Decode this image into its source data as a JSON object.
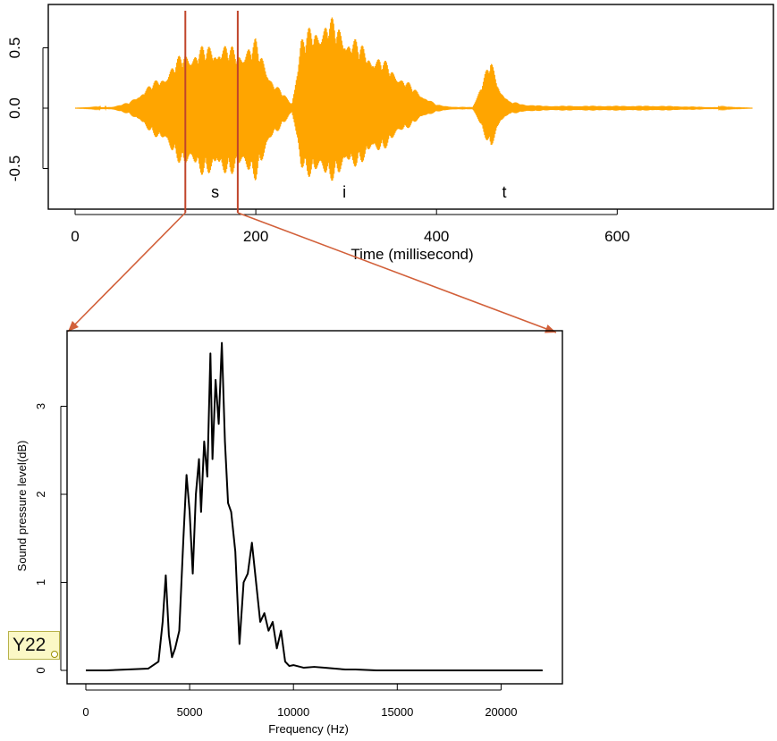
{
  "chart_data": [
    {
      "type": "line",
      "xlabel": "Time (millisecond)",
      "ylabel": "",
      "xlim": [
        0,
        760
      ],
      "ylim": [
        -0.8,
        0.8
      ],
      "xticks": [
        0,
        200,
        400,
        600
      ],
      "yticks": [
        -0.5,
        0.0,
        0.5
      ],
      "ytick_labels": [
        "-0.5",
        "0.0",
        "0.5"
      ],
      "series_color": "#ffa500",
      "envelope": {
        "x": [
          0,
          40,
          60,
          80,
          100,
          120,
          140,
          160,
          180,
          200,
          220,
          240,
          250,
          260,
          280,
          300,
          320,
          340,
          360,
          380,
          400,
          420,
          440,
          460,
          470,
          480,
          500,
          520,
          600,
          650,
          700,
          750
        ],
        "upper": [
          0.0,
          0.01,
          0.05,
          0.18,
          0.3,
          0.48,
          0.52,
          0.56,
          0.5,
          0.58,
          0.22,
          0.04,
          0.6,
          0.68,
          0.78,
          0.66,
          0.52,
          0.42,
          0.28,
          0.14,
          0.03,
          0.01,
          0.01,
          0.42,
          0.18,
          0.06,
          0.03,
          0.02,
          0.02,
          0.02,
          0.01,
          0.0
        ],
        "lower": [
          0.0,
          -0.01,
          -0.05,
          -0.18,
          -0.32,
          -0.5,
          -0.56,
          -0.58,
          -0.54,
          -0.6,
          -0.24,
          -0.04,
          -0.52,
          -0.58,
          -0.62,
          -0.55,
          -0.45,
          -0.36,
          -0.22,
          -0.1,
          -0.03,
          -0.01,
          -0.01,
          -0.35,
          -0.15,
          -0.05,
          -0.03,
          -0.02,
          -0.02,
          -0.02,
          -0.01,
          0.0
        ]
      },
      "segment_labels": [
        {
          "text": "s",
          "x": 155
        },
        {
          "text": "i",
          "x": 298
        },
        {
          "text": "t",
          "x": 475
        }
      ],
      "selection": {
        "x": [
          122,
          180
        ],
        "color": "#c0452b"
      }
    },
    {
      "type": "line",
      "xlabel": "Frequency (Hz)",
      "ylabel": "Sound pressure level(dB)",
      "xlim": [
        0,
        22050
      ],
      "ylim": [
        0,
        3.8
      ],
      "xticks": [
        0,
        5000,
        10000,
        15000,
        20000
      ],
      "yticks": [
        0,
        1,
        2,
        3
      ],
      "series_color": "#000000",
      "x": [
        0,
        1000,
        2000,
        3000,
        3500,
        3700,
        3850,
        4000,
        4150,
        4300,
        4500,
        4700,
        4850,
        5000,
        5150,
        5300,
        5450,
        5550,
        5700,
        5850,
        6000,
        6100,
        6250,
        6400,
        6550,
        6700,
        6850,
        7000,
        7200,
        7400,
        7600,
        7800,
        8000,
        8200,
        8400,
        8600,
        8800,
        9000,
        9200,
        9400,
        9600,
        9800,
        10000,
        10500,
        11000,
        11500,
        12000,
        12500,
        13000,
        14000,
        16000,
        18000,
        20000,
        22000
      ],
      "y": [
        0.0,
        0.0,
        0.01,
        0.02,
        0.1,
        0.55,
        1.08,
        0.4,
        0.15,
        0.25,
        0.45,
        1.5,
        2.22,
        1.8,
        1.1,
        2.0,
        2.4,
        1.8,
        2.6,
        2.2,
        3.6,
        2.4,
        3.3,
        2.8,
        3.72,
        2.6,
        1.9,
        1.8,
        1.35,
        0.3,
        1.0,
        1.1,
        1.45,
        1.0,
        0.55,
        0.65,
        0.45,
        0.55,
        0.25,
        0.45,
        0.1,
        0.05,
        0.06,
        0.03,
        0.04,
        0.03,
        0.02,
        0.01,
        0.01,
        0.0,
        0.0,
        0.0,
        0.0,
        0.0
      ]
    }
  ],
  "annotation": {
    "label": "Y22",
    "border_color": "#b8b24a",
    "fill_color": "#fbf8c6"
  },
  "arrow_color": "#d2603a"
}
